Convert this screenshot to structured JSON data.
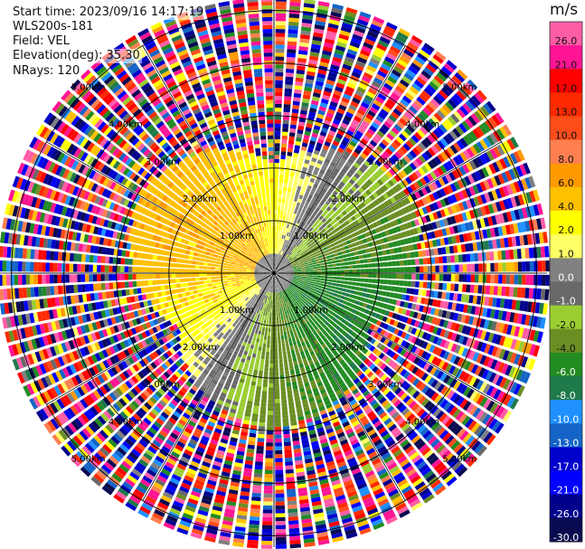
{
  "header": {
    "start_time": "Start time: 2023/09/16 14:17:19",
    "instrument": "WLS200s-181",
    "field": "Field: VEL",
    "elevation": "Elevation(deg): 35.30",
    "nrays": "NRays: 120"
  },
  "chart_data": {
    "type": "heatmap",
    "projection": "polar-ppi",
    "field": "VEL",
    "unit": "m/s",
    "nrays": 120,
    "range_rings_km": [
      1.0,
      2.0,
      3.0,
      4.0,
      5.0
    ],
    "ring_labels": [
      "1.00km",
      "2.00km",
      "3.00km",
      "4.00km",
      "5.00km"
    ],
    "max_range_km": 5.2,
    "azimuth_lines_deg": [
      0,
      30,
      60,
      90,
      120,
      150,
      180,
      210,
      240,
      270,
      300,
      330
    ],
    "colorbar": {
      "label": "m/s",
      "vmin": -30.0,
      "vmax": 30.0,
      "tick_values": [
        26.0,
        21.0,
        17.0,
        13.0,
        10.0,
        8.0,
        6.0,
        4.0,
        2.0,
        1.0,
        0.0,
        -1.0,
        -2.0,
        -4.0,
        -6.0,
        -8.0,
        -10.0,
        -13.0,
        -17.0,
        -21.0,
        -26.0,
        -30.0
      ],
      "tick_labels": [
        "26.0",
        "21.0",
        "17.0",
        "13.0",
        "10.0",
        "8.0",
        "6.0",
        "4.0",
        "2.0",
        "1.0",
        "0.0",
        "-1.0",
        "-2.0",
        "-4.0",
        "-6.0",
        "-8.0",
        "-10.0",
        "-13.0",
        "-17.0",
        "-21.0",
        "-26.0",
        "-30.0"
      ],
      "colors": [
        "#ff5ca8",
        "#ff1493",
        "#ff0000",
        "#ff2a00",
        "#ff4d1a",
        "#ff7f50",
        "#ff9900",
        "#ffc000",
        "#ffff00",
        "#ffff66",
        "#808080",
        "#696969",
        "#9acd32",
        "#6b8e23",
        "#228b22",
        "#1e7a4a",
        "#1e90ff",
        "#1464c8",
        "#0000cd",
        "#0000ff",
        "#00008b",
        "#0a0a50"
      ]
    },
    "velocity_pattern": {
      "near_field_max_km": 2.4,
      "positive_toward_azimuth_deg": 300,
      "negative_toward_azimuth_deg": 120,
      "outer_region": "noise"
    }
  }
}
